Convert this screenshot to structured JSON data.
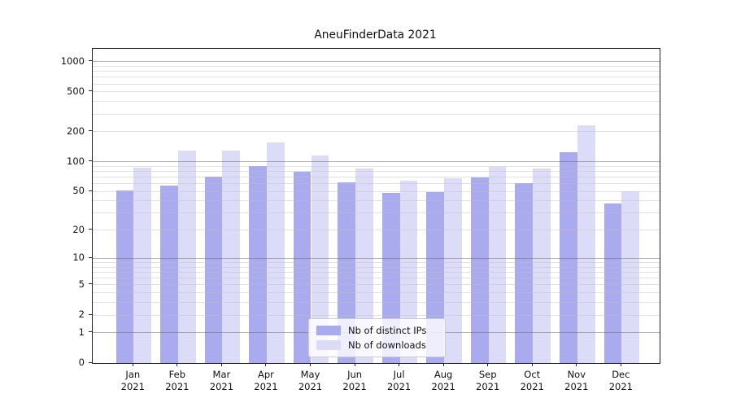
{
  "title": "AneuFinderData 2021",
  "colors": {
    "ips_bar": "#aaaaee",
    "downloads_bar": "#dcdcf8",
    "grid_major": "#9c9c9c",
    "grid_minor": "#dcdcdf",
    "axis": "#222222",
    "legend_border": "#cccccc"
  },
  "legend": {
    "items": [
      {
        "label": "Nb of distinct IPs"
      },
      {
        "label": "Nb of downloads"
      }
    ]
  },
  "chart_data": {
    "type": "bar",
    "title": "AneuFinderData 2021",
    "categories": [
      "Jan 2021",
      "Feb 2021",
      "Mar 2021",
      "Apr 2021",
      "May 2021",
      "Jun 2021",
      "Jul 2021",
      "Aug 2021",
      "Sep 2021",
      "Oct 2021",
      "Nov 2021",
      "Dec 2021"
    ],
    "series": [
      {
        "name": "Nb of distinct IPs",
        "color": "#aaaaee",
        "values": [
          51,
          57,
          71,
          90,
          79,
          62,
          48,
          49,
          69,
          61,
          125,
          38
        ]
      },
      {
        "name": "Nb of downloads",
        "color": "#dcdcf8",
        "values": [
          87,
          130,
          130,
          155,
          115,
          86,
          64,
          68,
          89,
          86,
          230,
          50
        ]
      }
    ],
    "xlabel": "",
    "ylabel": "",
    "yscale": "log1p",
    "yticks": [
      0,
      1,
      2,
      5,
      10,
      20,
      50,
      100,
      200,
      500,
      1000
    ],
    "ylim": [
      0,
      1340
    ],
    "grid": "horizontal, major and log-minor lines",
    "legend_position": "lower center"
  }
}
